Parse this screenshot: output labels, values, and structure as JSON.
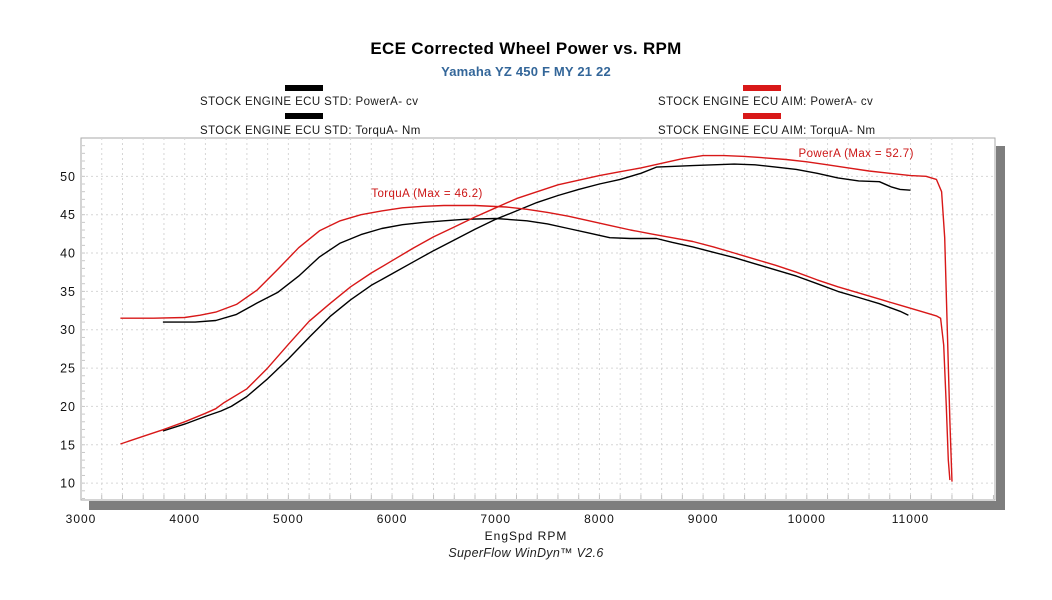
{
  "header": {
    "title": "ECE Corrected Wheel Power vs. RPM",
    "subtitle": "Yamaha YZ 450 F MY 21 22",
    "subtitle_color": "#336699"
  },
  "legend": {
    "left": [
      {
        "label": "STOCK ENGINE ECU STD: PowerA- cv",
        "color": "#000000",
        "swatch": "black-bar"
      },
      {
        "label": "STOCK ENGINE ECU STD: TorquA- Nm",
        "color": "#000000",
        "swatch": "black-bar"
      }
    ],
    "right": [
      {
        "label": "STOCK ENGINE ECU AIM: PowerA- cv",
        "color": "#d81818",
        "swatch": "red-bar"
      },
      {
        "label": "STOCK ENGINE ECU AIM: TorquA- Nm",
        "color": "#d81818",
        "swatch": "red-bar"
      }
    ]
  },
  "footer": {
    "xlabel": "EngSpd RPM",
    "watermark": "SuperFlow WinDyn™ V2.6"
  },
  "colors": {
    "accent_red": "#d81818",
    "curve_black": "#000000",
    "grid": "#d6d6d6",
    "frame": "#aaaaaa",
    "shadow": "#7e7e7e",
    "tick_text": "#111111"
  },
  "chart_data": {
    "type": "line",
    "title": "ECE Corrected Wheel Power vs. RPM",
    "subtitle": "Yamaha YZ 450 F MY 21 22",
    "xlabel": "EngSpd RPM",
    "ylabel": "",
    "xlim": [
      3000,
      11815
    ],
    "ylim": [
      7.8,
      55
    ],
    "x_ticks": [
      3000,
      4000,
      5000,
      6000,
      7000,
      8000,
      9000,
      10000,
      11000
    ],
    "y_ticks": [
      10,
      15,
      20,
      25,
      30,
      35,
      40,
      45,
      50
    ],
    "grid": {
      "style": "dashed",
      "x_step": 200,
      "y_step": 5
    },
    "legend_position": "top, split left (STD/black) and right (AIM/red)",
    "annotations": [
      {
        "text": "TorquA (Max = 46.2)",
        "rpm": 5800,
        "value": 47.3,
        "color": "#cc1616"
      },
      {
        "text": "PowerA (Max = 52.7)",
        "rpm": 9920,
        "value": 52.5,
        "color": "#cc1616"
      }
    ],
    "series": [
      {
        "name": "STOCK ENGINE ECU STD: PowerA- cv",
        "color": "#000000",
        "max": 51.6,
        "points": [
          [
            3790,
            16.8
          ],
          [
            4000,
            17.7
          ],
          [
            4200,
            18.7
          ],
          [
            4350,
            19.4
          ],
          [
            4450,
            20.0
          ],
          [
            4600,
            21.3
          ],
          [
            4800,
            23.6
          ],
          [
            5000,
            26.2
          ],
          [
            5200,
            29.0
          ],
          [
            5400,
            31.7
          ],
          [
            5600,
            33.9
          ],
          [
            5800,
            35.8
          ],
          [
            6000,
            37.3
          ],
          [
            6200,
            38.8
          ],
          [
            6400,
            40.3
          ],
          [
            6600,
            41.7
          ],
          [
            6800,
            43.1
          ],
          [
            7000,
            44.4
          ],
          [
            7200,
            45.5
          ],
          [
            7400,
            46.6
          ],
          [
            7600,
            47.5
          ],
          [
            7800,
            48.3
          ],
          [
            8000,
            49.0
          ],
          [
            8200,
            49.6
          ],
          [
            8400,
            50.4
          ],
          [
            8550,
            51.2
          ],
          [
            8700,
            51.3
          ],
          [
            8900,
            51.4
          ],
          [
            9100,
            51.5
          ],
          [
            9300,
            51.6
          ],
          [
            9500,
            51.5
          ],
          [
            9700,
            51.2
          ],
          [
            9900,
            50.9
          ],
          [
            10100,
            50.4
          ],
          [
            10300,
            49.8
          ],
          [
            10500,
            49.4
          ],
          [
            10700,
            49.3
          ],
          [
            10820,
            48.6
          ],
          [
            10900,
            48.3
          ],
          [
            11000,
            48.2
          ]
        ]
      },
      {
        "name": "STOCK ENGINE ECU STD: TorquA- Nm",
        "color": "#000000",
        "max": 44.5,
        "points": [
          [
            3790,
            31.0
          ],
          [
            4100,
            31.0
          ],
          [
            4300,
            31.2
          ],
          [
            4500,
            32.0
          ],
          [
            4700,
            33.5
          ],
          [
            4900,
            34.9
          ],
          [
            5100,
            37.0
          ],
          [
            5300,
            39.5
          ],
          [
            5500,
            41.3
          ],
          [
            5700,
            42.4
          ],
          [
            5900,
            43.2
          ],
          [
            6100,
            43.7
          ],
          [
            6300,
            44.0
          ],
          [
            6500,
            44.2
          ],
          [
            6700,
            44.4
          ],
          [
            7000,
            44.5
          ],
          [
            7300,
            44.2
          ],
          [
            7500,
            43.8
          ],
          [
            7700,
            43.2
          ],
          [
            7900,
            42.6
          ],
          [
            8100,
            42.0
          ],
          [
            8300,
            41.9
          ],
          [
            8550,
            41.9
          ],
          [
            8700,
            41.4
          ],
          [
            8900,
            40.8
          ],
          [
            9100,
            40.1
          ],
          [
            9300,
            39.4
          ],
          [
            9500,
            38.6
          ],
          [
            9700,
            37.8
          ],
          [
            9900,
            37.0
          ],
          [
            10100,
            36.0
          ],
          [
            10300,
            35.0
          ],
          [
            10500,
            34.2
          ],
          [
            10700,
            33.4
          ],
          [
            10900,
            32.4
          ],
          [
            10980,
            31.9
          ]
        ]
      },
      {
        "name": "STOCK ENGINE ECU AIM: PowerA- cv",
        "color": "#d81818",
        "max": 52.7,
        "points": [
          [
            3380,
            15.1
          ],
          [
            3600,
            16.1
          ],
          [
            3800,
            17.0
          ],
          [
            4000,
            18.0
          ],
          [
            4200,
            19.1
          ],
          [
            4300,
            19.7
          ],
          [
            4380,
            20.5
          ],
          [
            4600,
            22.3
          ],
          [
            4800,
            25.0
          ],
          [
            5000,
            28.1
          ],
          [
            5200,
            31.1
          ],
          [
            5400,
            33.4
          ],
          [
            5600,
            35.6
          ],
          [
            5800,
            37.4
          ],
          [
            6000,
            39.0
          ],
          [
            6200,
            40.6
          ],
          [
            6400,
            42.1
          ],
          [
            6600,
            43.4
          ],
          [
            6800,
            44.7
          ],
          [
            7000,
            45.9
          ],
          [
            7200,
            47.1
          ],
          [
            7400,
            48.0
          ],
          [
            7600,
            48.9
          ],
          [
            7800,
            49.5
          ],
          [
            8000,
            50.1
          ],
          [
            8200,
            50.6
          ],
          [
            8400,
            51.1
          ],
          [
            8600,
            51.7
          ],
          [
            8800,
            52.3
          ],
          [
            9000,
            52.7
          ],
          [
            9200,
            52.7
          ],
          [
            9400,
            52.6
          ],
          [
            9600,
            52.4
          ],
          [
            9800,
            52.2
          ],
          [
            10000,
            51.9
          ],
          [
            10200,
            51.5
          ],
          [
            10400,
            51.1
          ],
          [
            10600,
            50.7
          ],
          [
            10800,
            50.4
          ],
          [
            11000,
            50.1
          ],
          [
            11150,
            50.0
          ],
          [
            11250,
            49.6
          ],
          [
            11300,
            48.0
          ],
          [
            11330,
            42.0
          ],
          [
            11355,
            30.0
          ],
          [
            11380,
            18.0
          ],
          [
            11400,
            10.2
          ]
        ]
      },
      {
        "name": "STOCK ENGINE ECU AIM: TorquA- Nm",
        "color": "#d81818",
        "max": 46.2,
        "points": [
          [
            3380,
            31.5
          ],
          [
            3700,
            31.5
          ],
          [
            4000,
            31.6
          ],
          [
            4150,
            31.9
          ],
          [
            4300,
            32.3
          ],
          [
            4500,
            33.3
          ],
          [
            4700,
            35.2
          ],
          [
            4900,
            37.9
          ],
          [
            5100,
            40.7
          ],
          [
            5300,
            42.9
          ],
          [
            5500,
            44.2
          ],
          [
            5700,
            45.0
          ],
          [
            5900,
            45.5
          ],
          [
            6100,
            45.9
          ],
          [
            6300,
            46.1
          ],
          [
            6500,
            46.2
          ],
          [
            6800,
            46.2
          ],
          [
            7100,
            46.0
          ],
          [
            7300,
            45.7
          ],
          [
            7500,
            45.3
          ],
          [
            7700,
            44.8
          ],
          [
            7900,
            44.2
          ],
          [
            8100,
            43.6
          ],
          [
            8300,
            43.0
          ],
          [
            8500,
            42.5
          ],
          [
            8700,
            42.0
          ],
          [
            8900,
            41.5
          ],
          [
            9100,
            40.8
          ],
          [
            9300,
            40.0
          ],
          [
            9500,
            39.2
          ],
          [
            9700,
            38.4
          ],
          [
            9900,
            37.5
          ],
          [
            10100,
            36.5
          ],
          [
            10300,
            35.6
          ],
          [
            10500,
            34.8
          ],
          [
            10700,
            34.0
          ],
          [
            10900,
            33.2
          ],
          [
            11100,
            32.4
          ],
          [
            11250,
            31.8
          ],
          [
            11290,
            31.5
          ],
          [
            11320,
            28.0
          ],
          [
            11345,
            20.0
          ],
          [
            11365,
            13.0
          ],
          [
            11380,
            10.4
          ]
        ]
      }
    ]
  }
}
